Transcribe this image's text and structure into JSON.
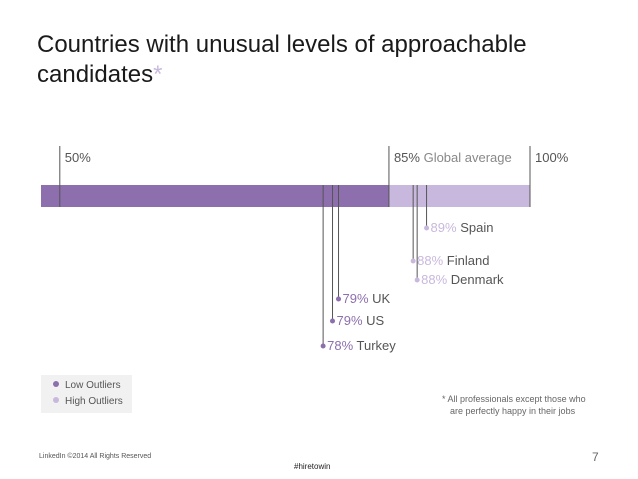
{
  "title": {
    "line1": "Countries with unusual levels of approachable",
    "line2": "candidates",
    "asterisk": "*"
  },
  "colors": {
    "low": "#8d6fad",
    "high": "#c9b8dd",
    "text": "#555555"
  },
  "chart_data": {
    "type": "bar",
    "title": "Countries with unusual levels of approachable candidates*",
    "xlim": [
      48,
      100
    ],
    "bar_value": 85,
    "bar_segments": [
      {
        "name": "Low",
        "from": 48,
        "to": 85,
        "color": "#8d6fad"
      },
      {
        "name": "High",
        "from": 85,
        "to": 100,
        "color": "#c9b8dd"
      }
    ],
    "ticks": [
      {
        "value": 50,
        "pct": "50%",
        "label": ""
      },
      {
        "value": 85,
        "pct": "85%",
        "label": "Global average"
      },
      {
        "value": 100,
        "pct": "100%",
        "label": ""
      }
    ],
    "outliers": [
      {
        "country": "Spain",
        "pct": "89%",
        "value": 89,
        "group": "high"
      },
      {
        "country": "Finland",
        "pct": "88%",
        "value": 88,
        "group": "high"
      },
      {
        "country": "Denmark",
        "pct": "88%",
        "value": 88,
        "group": "high"
      },
      {
        "country": "UK",
        "pct": "79%",
        "value": 79,
        "group": "low"
      },
      {
        "country": "US",
        "pct": "79%",
        "value": 79,
        "group": "low"
      },
      {
        "country": "Turkey",
        "pct": "78%",
        "value": 78,
        "group": "low"
      }
    ]
  },
  "legend": [
    {
      "label": "Low Outliers",
      "color": "#8d6fad"
    },
    {
      "label": "High Outliers",
      "color": "#c9b8dd"
    }
  ],
  "footnote": {
    "line1": "* All professionals except those who",
    "line2": "are perfectly happy in their jobs"
  },
  "footer": {
    "copyright": "LinkedIn ©2014 All Rights Reserved",
    "hashtag": "#hiretowin",
    "page": "7"
  }
}
